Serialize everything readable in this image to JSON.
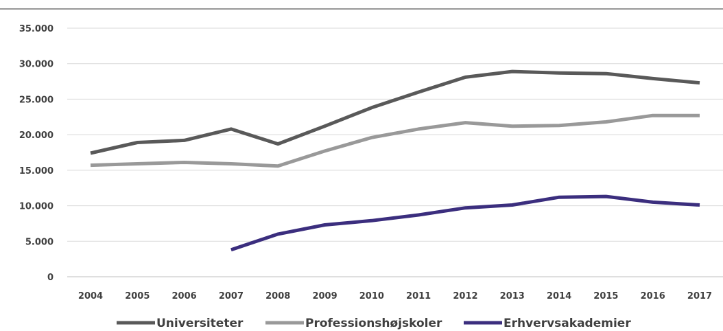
{
  "chart_data": {
    "type": "line",
    "title": "",
    "xlabel": "",
    "ylabel": "",
    "x": [
      "2004",
      "2005",
      "2006",
      "2007",
      "2008",
      "2009",
      "2010",
      "2011",
      "2012",
      "2013",
      "2014",
      "2015",
      "2016",
      "2017"
    ],
    "ylim": [
      0,
      35000
    ],
    "yticks": [
      0,
      5000,
      10000,
      15000,
      20000,
      25000,
      30000,
      35000
    ],
    "ytick_labels": [
      "0",
      "5.000",
      "10.000",
      "15.000",
      "20.000",
      "25.000",
      "30.000",
      "35.000"
    ],
    "grid": true,
    "legend_position": "bottom",
    "series": [
      {
        "name": "Universiteter",
        "color": "#595959",
        "values": [
          17400,
          18900,
          19200,
          20800,
          18700,
          21200,
          23800,
          26000,
          28100,
          28900,
          28700,
          28600,
          27900,
          27300
        ]
      },
      {
        "name": "Professionshøjskoler",
        "color": "#999999",
        "values": [
          15700,
          15900,
          16100,
          15900,
          15600,
          17700,
          19600,
          20800,
          21700,
          21200,
          21300,
          21800,
          22700,
          22700
        ]
      },
      {
        "name": "Erhvervsakademier",
        "color": "#3b2e7e",
        "values": [
          null,
          null,
          null,
          3800,
          6000,
          7300,
          7900,
          8700,
          9700,
          10100,
          11200,
          11300,
          10500,
          10100
        ]
      }
    ]
  }
}
